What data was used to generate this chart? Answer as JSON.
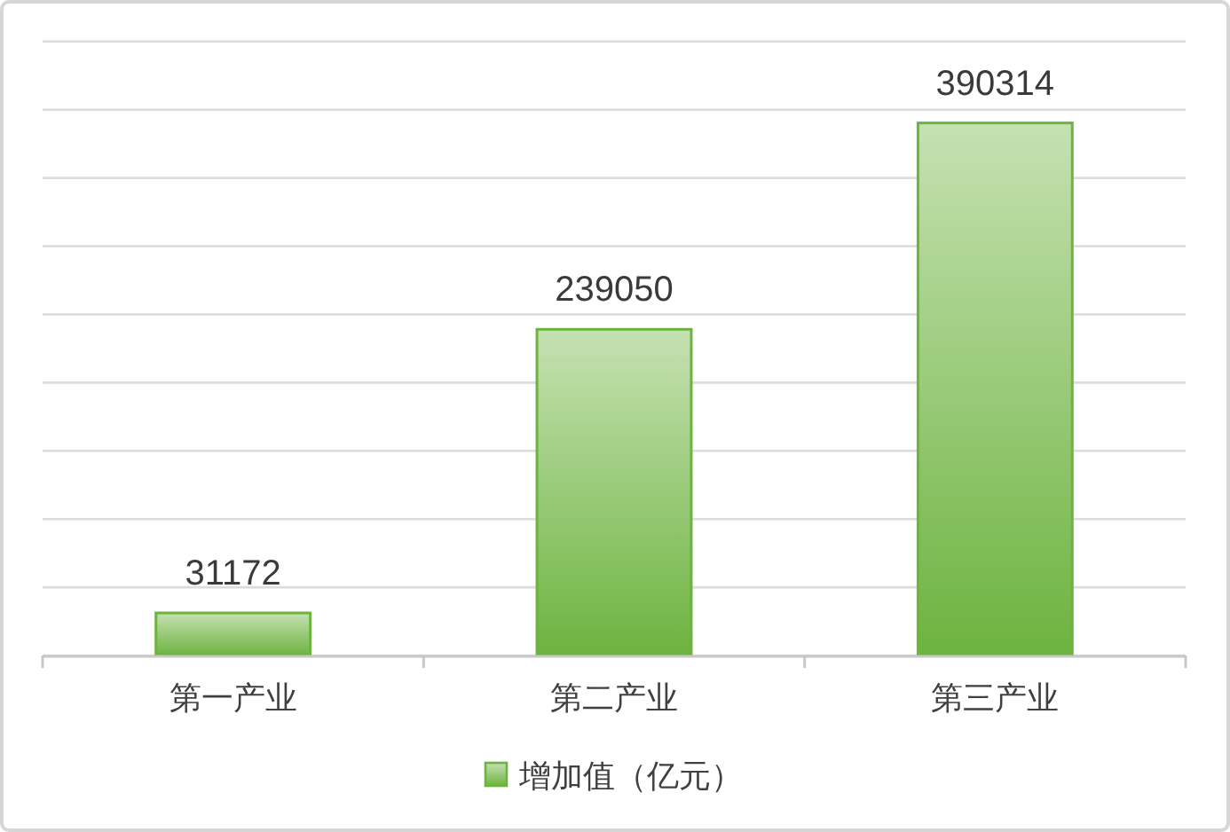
{
  "chart_data": {
    "type": "bar",
    "categories": [
      "第一产业",
      "第二产业",
      "第三产业"
    ],
    "series": [
      {
        "name": "增加值（亿元）",
        "color": "#6db33f",
        "values": [
          31172,
          239050,
          390314
        ]
      }
    ],
    "ylim": [
      0,
      450000
    ],
    "yticks": [
      {
        "value": 0,
        "label": null
      },
      {
        "value": 50000,
        "label": null
      },
      {
        "value": 100000,
        "label": null
      },
      {
        "value": 150000,
        "label": null
      },
      {
        "value": 200000,
        "label": null
      },
      {
        "value": 250000,
        "label": null
      },
      {
        "value": 300000,
        "label": null
      },
      {
        "value": 350000,
        "label": null
      },
      {
        "value": 400000,
        "label": null
      },
      {
        "value": 450000,
        "label": null
      }
    ],
    "grid": "y",
    "legend": "bottom",
    "data_labels": true
  }
}
